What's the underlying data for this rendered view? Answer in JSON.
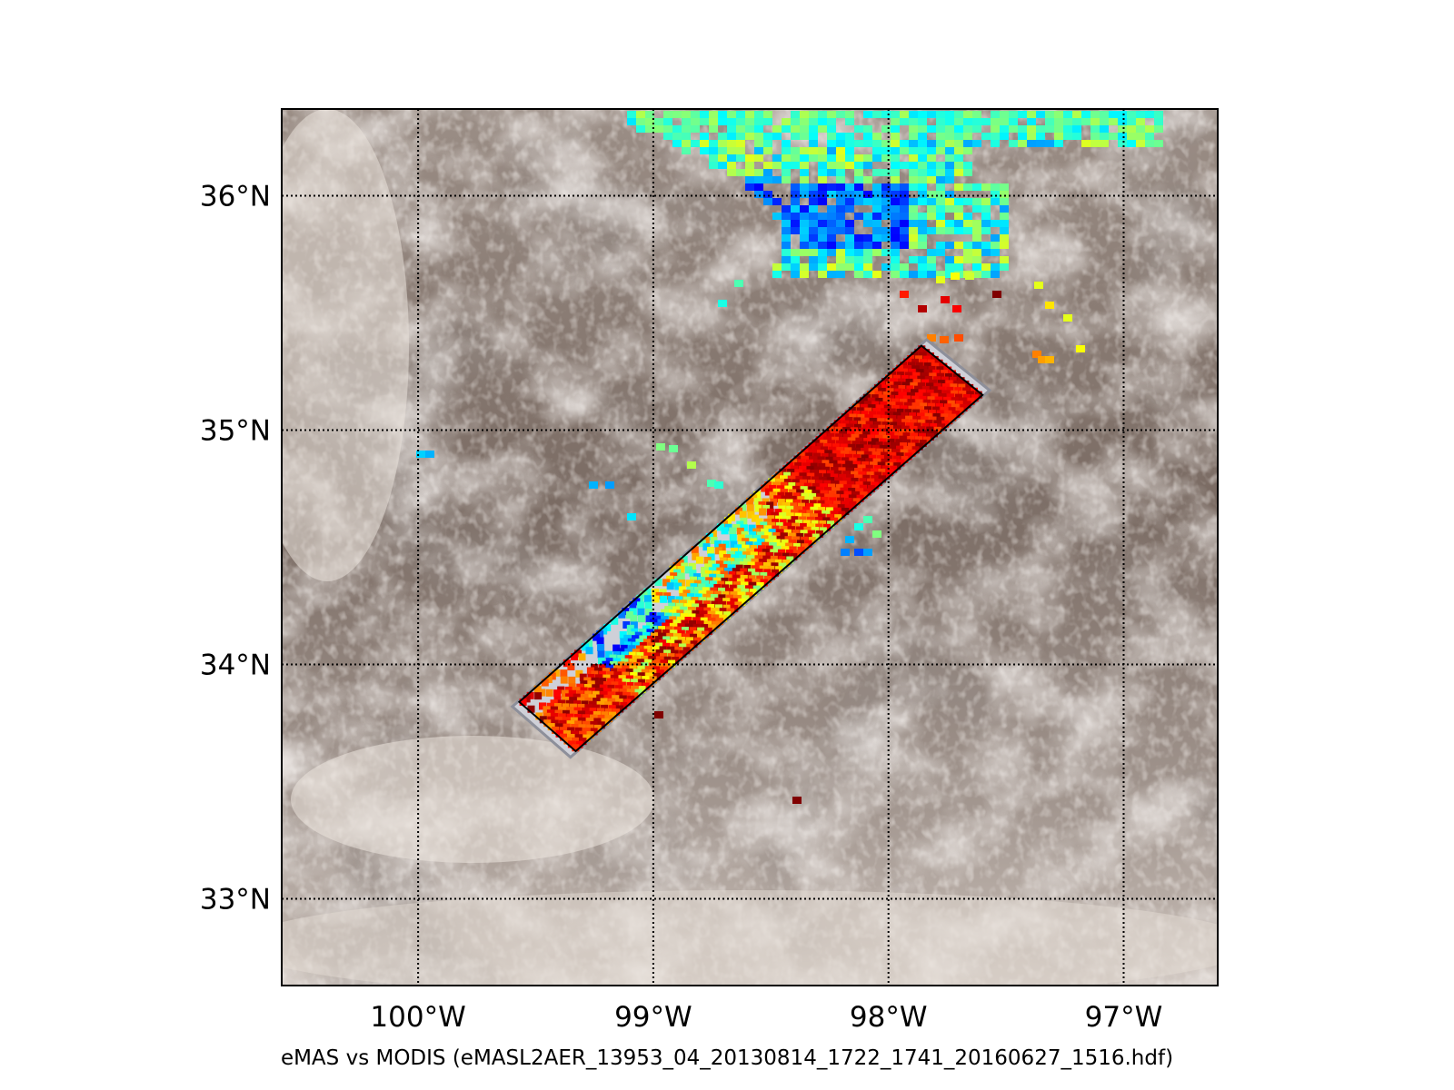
{
  "figure": {
    "caption": "eMAS vs MODIS (eMASL2AER_13953_04_20130814_1722_1741_20160627_1516.hdf)"
  },
  "map": {
    "lon_range": [
      -100.58,
      -96.6
    ],
    "lat_range": [
      32.63,
      36.37
    ],
    "gridlines": "dotted",
    "background": "true-color satellite imagery, scattered cumulus clouds over brown land",
    "meridians": [
      {
        "lon": -100,
        "label": "100°W"
      },
      {
        "lon": -99,
        "label": "99°W"
      },
      {
        "lon": -98,
        "label": "98°W"
      },
      {
        "lon": -97,
        "label": "97°W"
      }
    ],
    "parallels": [
      {
        "lat": 36,
        "label": "36°N"
      },
      {
        "lat": 35,
        "label": "35°N"
      },
      {
        "lat": 34,
        "label": "34°N"
      },
      {
        "lat": 33,
        "label": "33°N"
      }
    ],
    "swath": {
      "corners": [
        [
          -97.86,
          35.36
        ],
        [
          -97.6,
          35.15
        ],
        [
          -99.33,
          33.63
        ],
        [
          -99.57,
          33.84
        ]
      ],
      "colormap": "jet"
    }
  }
}
